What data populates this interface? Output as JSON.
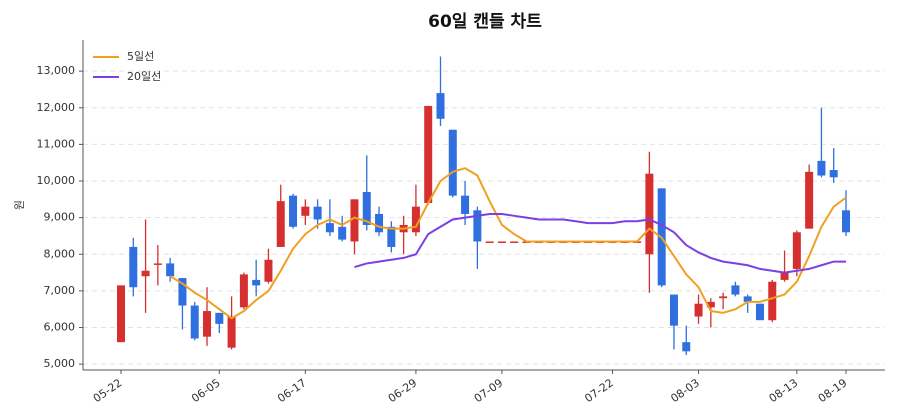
{
  "chart_data": {
    "type": "candlestick",
    "title": "60일 캔들 차트",
    "y_label": "원",
    "categories": [
      "05-22",
      null,
      null,
      null,
      null,
      null,
      null,
      null,
      "06-05",
      null,
      null,
      null,
      null,
      null,
      null,
      "06-17",
      null,
      null,
      null,
      null,
      null,
      null,
      null,
      null,
      "06-29",
      null,
      null,
      null,
      null,
      null,
      null,
      "07-09",
      null,
      null,
      null,
      null,
      null,
      null,
      null,
      null,
      "07-22",
      null,
      null,
      null,
      null,
      null,
      null,
      "08-03",
      null,
      null,
      null,
      null,
      null,
      null,
      null,
      "08-13",
      null,
      null,
      null,
      "08-19"
    ],
    "open": [
      5600,
      8200,
      7400,
      7750,
      7750,
      7350,
      6600,
      5750,
      6400,
      5450,
      6550,
      7300,
      7250,
      8200,
      9600,
      9050,
      9300,
      8850,
      8750,
      8350,
      9700,
      9100,
      8750,
      8600,
      8600,
      9400,
      12400,
      11400,
      9600,
      9200,
      8350,
      8350,
      8350,
      8350,
      8350,
      8350,
      8350,
      8350,
      8350,
      8350,
      8350,
      8350,
      8350,
      8000,
      9800,
      6900,
      5600,
      6300,
      6550,
      6800,
      7150,
      6850,
      6650,
      6200,
      7300,
      7600,
      8700,
      10550,
      10300,
      9200
    ],
    "high": [
      7150,
      8450,
      8950,
      8250,
      7900,
      7350,
      6700,
      7100,
      6400,
      6850,
      7500,
      7850,
      8150,
      9900,
      9650,
      9500,
      9500,
      9500,
      9050,
      9500,
      10700,
      9300,
      8900,
      9050,
      9900,
      12050,
      13400,
      11400,
      10000,
      9300,
      8350,
      8350,
      8350,
      8350,
      8350,
      8350,
      8350,
      8350,
      8350,
      8350,
      8350,
      8350,
      8350,
      10800,
      9800,
      6900,
      6050,
      6900,
      6800,
      6950,
      7250,
      6900,
      6650,
      7300,
      8100,
      8650,
      10450,
      12000,
      10900,
      9750
    ],
    "low": [
      5600,
      6850,
      6400,
      7150,
      7250,
      5950,
      5650,
      5500,
      5850,
      5400,
      6500,
      6850,
      7200,
      8200,
      8700,
      8800,
      8700,
      8500,
      8350,
      8000,
      8650,
      8500,
      8050,
      8000,
      8500,
      9350,
      11500,
      9550,
      8800,
      7600,
      8350,
      8350,
      8350,
      8350,
      8350,
      8350,
      8350,
      8350,
      8350,
      8350,
      8350,
      8350,
      8350,
      6950,
      7100,
      5400,
      5250,
      6100,
      6000,
      6500,
      6850,
      6400,
      6200,
      6150,
      7250,
      7400,
      8700,
      10100,
      9950,
      8500
    ],
    "close": [
      7150,
      7100,
      7550,
      7750,
      7400,
      6600,
      5700,
      6450,
      6100,
      6300,
      7450,
      7150,
      7850,
      9450,
      8750,
      9300,
      8950,
      8600,
      8400,
      9500,
      8800,
      8600,
      8200,
      8800,
      9300,
      12050,
      11700,
      9600,
      9100,
      8350,
      8350,
      8350,
      8350,
      8350,
      8350,
      8350,
      8350,
      8350,
      8350,
      8350,
      8350,
      8350,
      8350,
      10200,
      7150,
      6050,
      5350,
      6650,
      6700,
      6850,
      6900,
      6700,
      6200,
      7250,
      7500,
      8600,
      10250,
      10150,
      10100,
      8600
    ],
    "up_color": "#d62f2f",
    "down_color": "#2f6fe0",
    "series": [
      {
        "name": "5일선",
        "color": "#f0a020",
        "values": [
          null,
          null,
          null,
          null,
          7400,
          7200,
          6950,
          6750,
          6500,
          6250,
          6450,
          6750,
          7000,
          7550,
          8150,
          8550,
          8800,
          8950,
          8800,
          9000,
          8900,
          8750,
          8700,
          8700,
          8750,
          9400,
          10000,
          10250,
          10350,
          10150,
          9450,
          8800,
          8550,
          8350,
          8350,
          8350,
          8350,
          8350,
          8350,
          8350,
          8350,
          8350,
          8350,
          8700,
          8450,
          7950,
          7450,
          7100,
          6450,
          6400,
          6500,
          6700,
          6700,
          6800,
          6900,
          7250,
          7950,
          8750,
          9300,
          9550
        ]
      },
      {
        "name": "20일선",
        "color": "#7b3fe4",
        "values": [
          null,
          null,
          null,
          null,
          null,
          null,
          null,
          null,
          null,
          null,
          null,
          null,
          null,
          null,
          null,
          null,
          null,
          null,
          null,
          7650,
          7750,
          7800,
          7850,
          7900,
          8000,
          8550,
          8750,
          8950,
          9000,
          9050,
          9100,
          9100,
          9050,
          9000,
          8950,
          8950,
          8950,
          8900,
          8850,
          8850,
          8850,
          8900,
          8900,
          8950,
          8800,
          8600,
          8250,
          8050,
          7900,
          7800,
          7750,
          7700,
          7600,
          7550,
          7500,
          7550,
          7600,
          7700,
          7800,
          7800
        ]
      }
    ],
    "ylim": [
      4840,
      13850
    ],
    "yticks": [
      {
        "value": 5000,
        "label": "5,000"
      },
      {
        "value": 6000,
        "label": "6,000"
      },
      {
        "value": 7000,
        "label": "7,000"
      },
      {
        "value": 8000,
        "label": "8,000"
      },
      {
        "value": 9000,
        "label": "9,000"
      },
      {
        "value": 10000,
        "label": "10,000"
      },
      {
        "value": 11000,
        "label": "11,000"
      },
      {
        "value": 12000,
        "label": "12,000"
      },
      {
        "value": 13000,
        "label": "13,000"
      }
    ],
    "grid": true,
    "legend": "upper-left"
  }
}
